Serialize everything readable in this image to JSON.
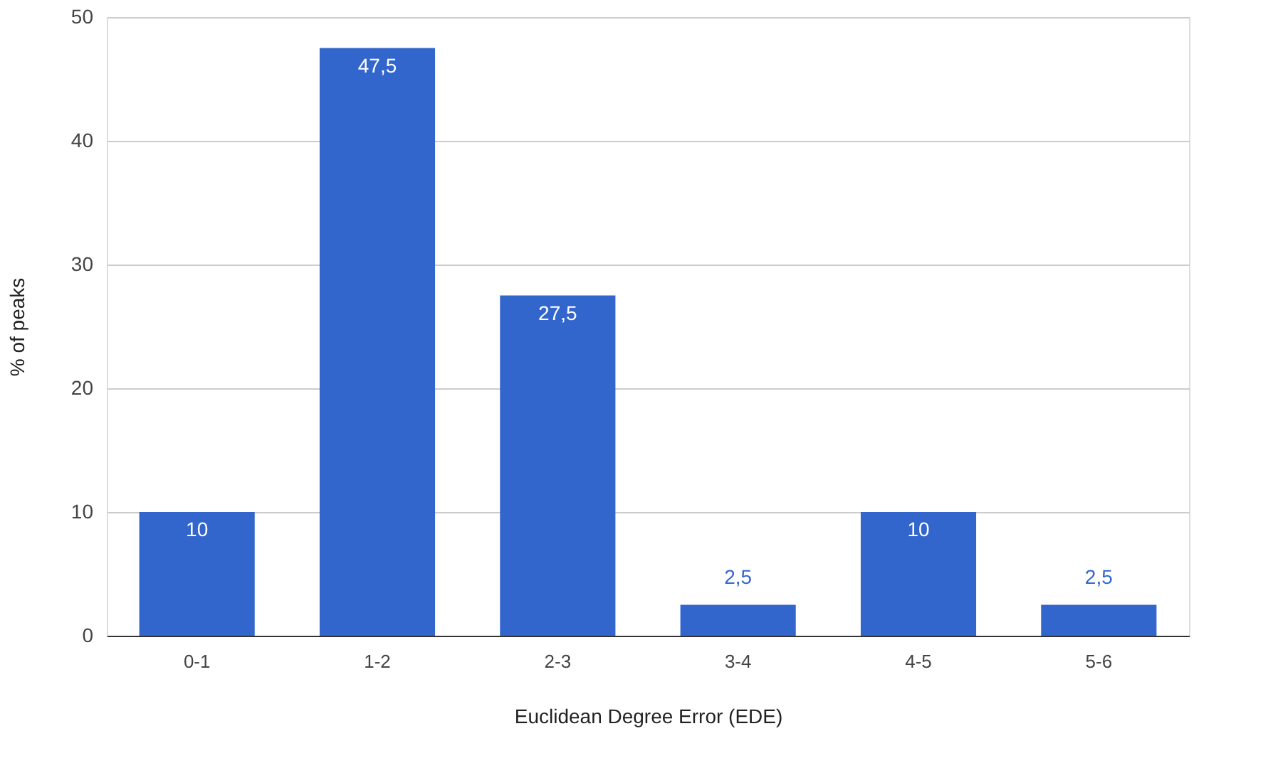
{
  "chart_data": {
    "type": "bar",
    "xlabel": "Euclidean Degree Error (EDE)",
    "ylabel": "% of peaks",
    "categories": [
      "0-1",
      "1-2",
      "2-3",
      "3-4",
      "4-5",
      "5-6"
    ],
    "values": [
      10,
      47.5,
      27.5,
      2.5,
      10,
      2.5
    ],
    "value_labels": [
      "10",
      "47,5",
      "27,5",
      "2,5",
      "10",
      "2,5"
    ],
    "color": "#3366cc",
    "ylim": [
      0,
      50
    ],
    "yticks": [
      0,
      10,
      20,
      30,
      40,
      50
    ],
    "grid": "y"
  }
}
